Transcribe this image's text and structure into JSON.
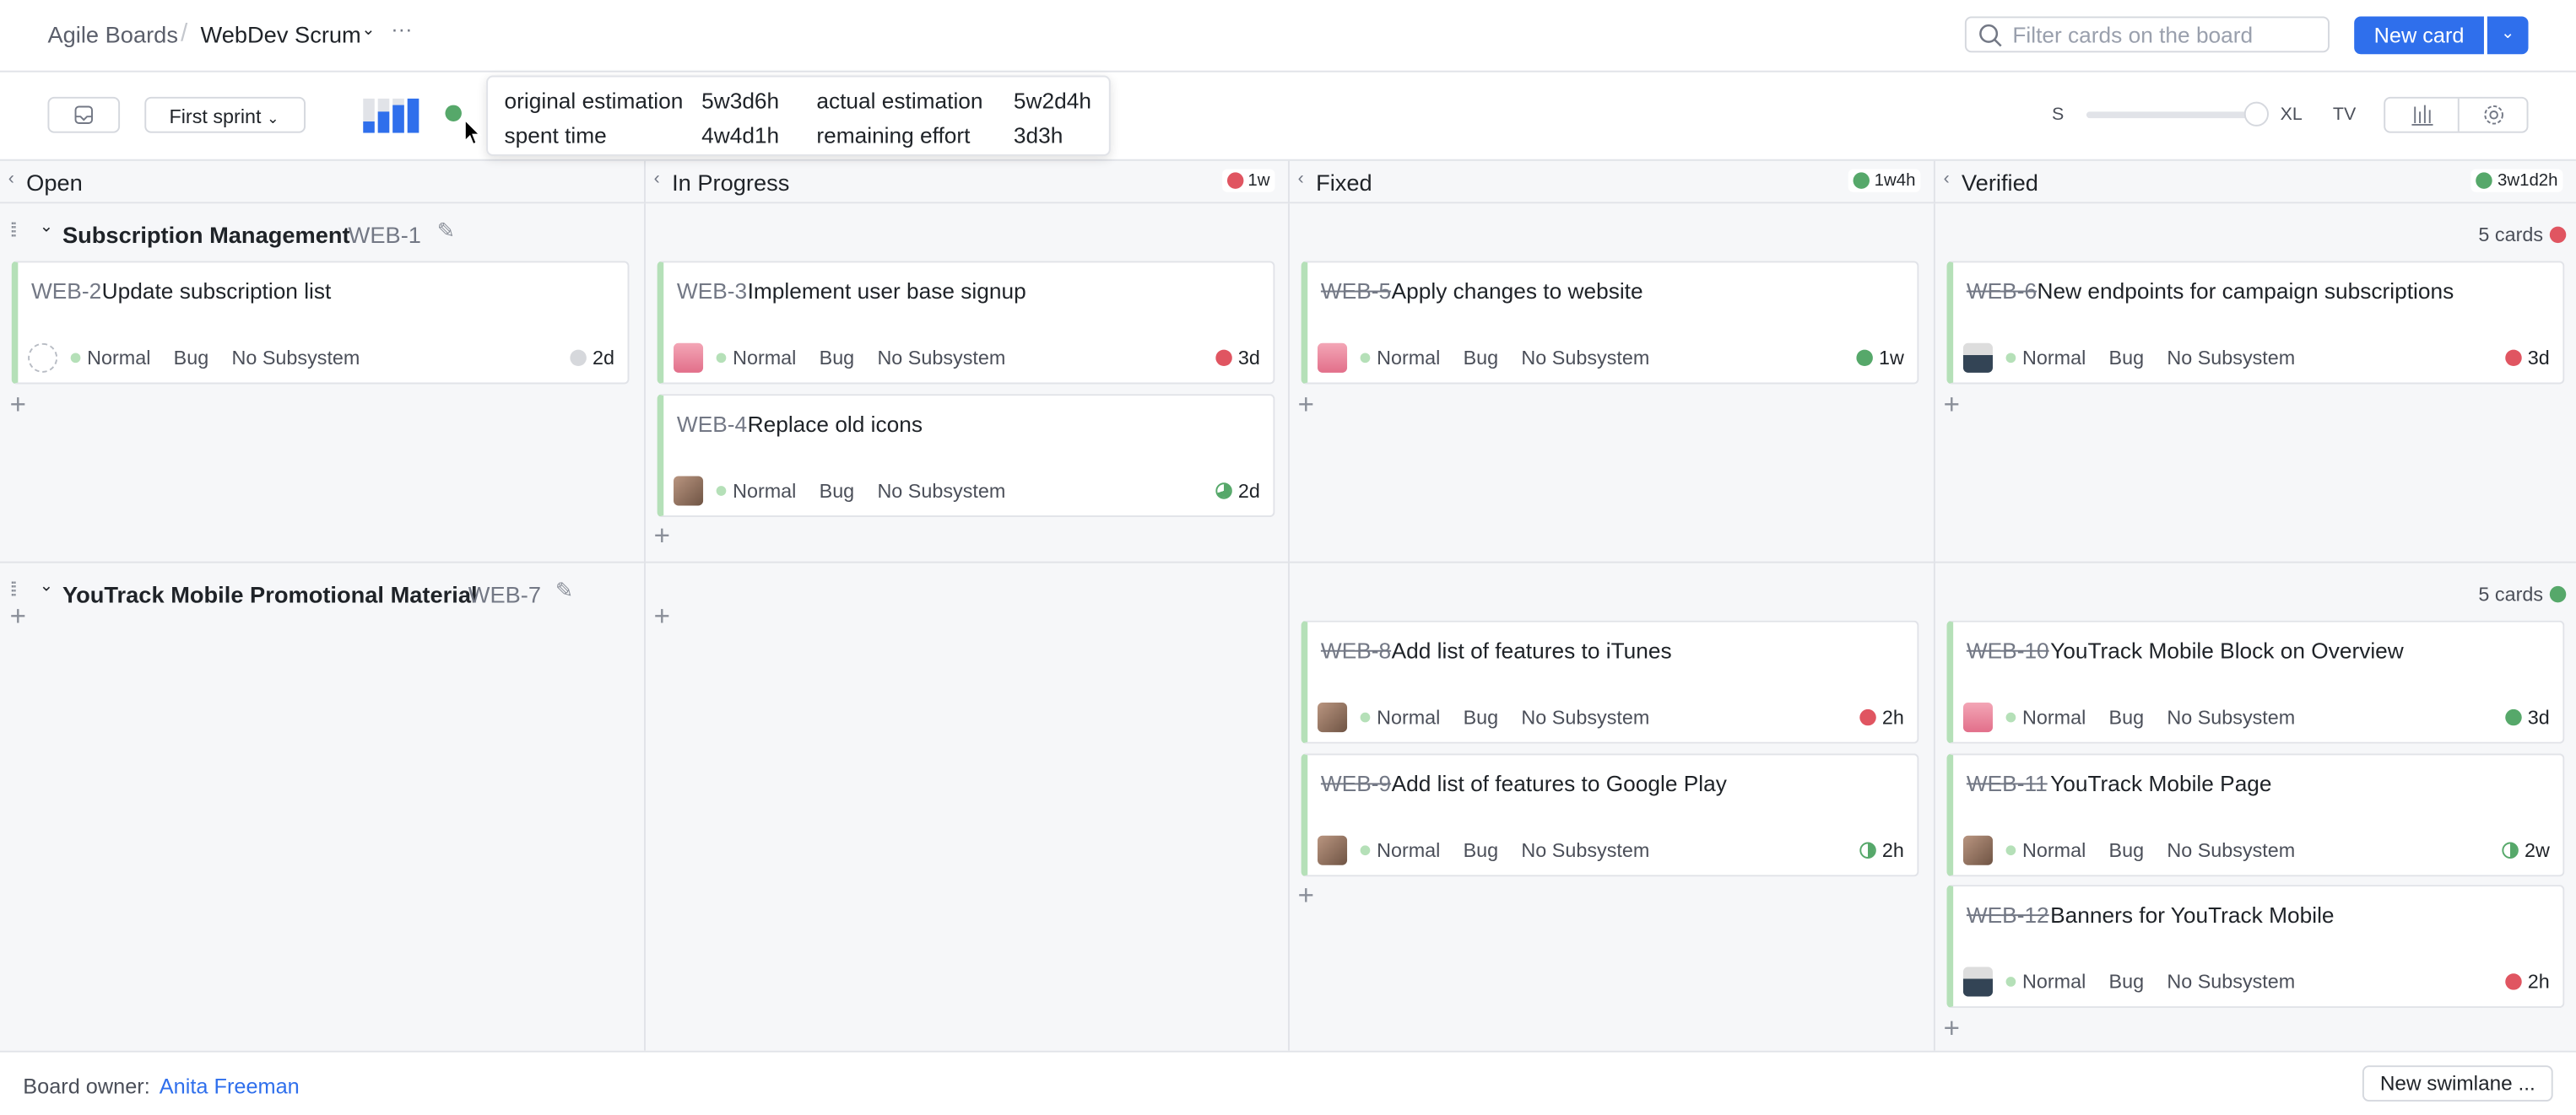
{
  "header": {
    "breadcrumb_root": "Agile Boards",
    "board_name": "WebDev Scrum",
    "more": "···",
    "search_placeholder": "Filter cards on the board",
    "new_card": "New card"
  },
  "toolbar": {
    "sprint": "First sprint",
    "size_min": "S",
    "size_max": "XL",
    "tv": "TV",
    "card_size_level": 1.0
  },
  "tooltip": {
    "rows": [
      {
        "k": "original estimation",
        "v": "5w3d6h"
      },
      {
        "k": "actual estimation",
        "v": "5w2d4h"
      },
      {
        "k": "spent time",
        "v": "4w4d1h"
      },
      {
        "k": "remaining effort",
        "v": "3d3h"
      }
    ]
  },
  "colors": {
    "accent": "#2f6fec",
    "red": "#e05561",
    "green": "#56a86a",
    "grey": "#d6d8dc",
    "card_border": "#b5e0b8"
  },
  "columns": [
    {
      "name": "Open",
      "badge": ""
    },
    {
      "name": "In Progress",
      "badge": "1w",
      "status": "red"
    },
    {
      "name": "Fixed",
      "badge": "1w4h",
      "status": "green"
    },
    {
      "name": "Verified",
      "badge": "3w1d2h",
      "status": "green"
    }
  ],
  "swimlanes": [
    {
      "title": "Subscription Management",
      "id": "WEB-1",
      "count": "5 cards",
      "status": "red",
      "cards": [
        {
          "col": 0,
          "id": "WEB-2",
          "title": "Update subscription list",
          "done": false,
          "priority": "Normal",
          "type": "Bug",
          "subsystem": "No Subsystem",
          "time": "2d",
          "status": "grey",
          "avatar": "none"
        },
        {
          "col": 1,
          "id": "WEB-3",
          "title": "Implement user base signup",
          "done": false,
          "priority": "Normal",
          "type": "Bug",
          "subsystem": "No Subsystem",
          "time": "3d",
          "status": "red",
          "avatar": "pink"
        },
        {
          "col": 1,
          "id": "WEB-4",
          "title": "Replace old icons",
          "done": false,
          "priority": "Normal",
          "type": "Bug",
          "subsystem": "No Subsystem",
          "time": "2d",
          "status": "partial",
          "avatar": "brown"
        },
        {
          "col": 2,
          "id": "WEB-5",
          "title": "Apply changes to website",
          "done": true,
          "priority": "Normal",
          "type": "Bug",
          "subsystem": "No Subsystem",
          "time": "1w",
          "status": "green",
          "avatar": "pink"
        },
        {
          "col": 3,
          "id": "WEB-6",
          "title": "New endpoints for campaign subscriptions",
          "done": true,
          "priority": "Normal",
          "type": "Bug",
          "subsystem": "No Subsystem",
          "time": "3d",
          "status": "red",
          "avatar": "man"
        }
      ]
    },
    {
      "title": "YouTrack Mobile Promotional Material",
      "id": "WEB-7",
      "count": "5 cards",
      "status": "green",
      "cards": [
        {
          "col": 2,
          "id": "WEB-8",
          "title": "Add list of features to iTunes",
          "done": true,
          "priority": "Normal",
          "type": "Bug",
          "subsystem": "No Subsystem",
          "time": "2h",
          "status": "red",
          "avatar": "brown"
        },
        {
          "col": 2,
          "id": "WEB-9",
          "title": "Add list of features to Google Play",
          "done": true,
          "priority": "Normal",
          "type": "Bug",
          "subsystem": "No Subsystem",
          "time": "2h",
          "status": "half",
          "avatar": "brown"
        },
        {
          "col": 3,
          "id": "WEB-10",
          "title": "YouTrack Mobile Block on Overview",
          "done": true,
          "priority": "Normal",
          "type": "Bug",
          "subsystem": "No Subsystem",
          "time": "3d",
          "status": "green",
          "avatar": "pink"
        },
        {
          "col": 3,
          "id": "WEB-11",
          "title": "YouTrack Mobile Page",
          "done": true,
          "priority": "Normal",
          "type": "Bug",
          "subsystem": "No Subsystem",
          "time": "2w",
          "status": "half",
          "avatar": "brown"
        },
        {
          "col": 3,
          "id": "WEB-12",
          "title": "Banners for YouTrack Mobile",
          "done": true,
          "priority": "Normal",
          "type": "Bug",
          "subsystem": "No Subsystem",
          "time": "2h",
          "status": "red",
          "avatar": "man"
        }
      ]
    }
  ],
  "footer": {
    "owner_label": "Board owner:",
    "owner": "Anita Freeman",
    "new_swimlane": "New swimlane ..."
  }
}
